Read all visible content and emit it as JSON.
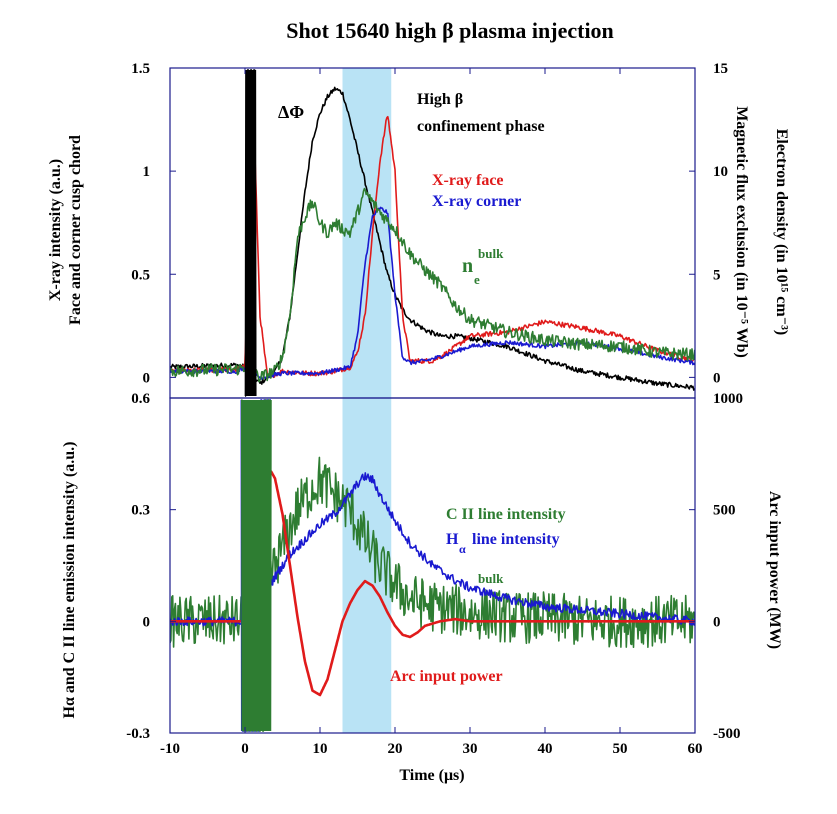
{
  "chart_data": {
    "type": "line",
    "title": "Shot 15640 high β plasma injection",
    "xlabel": "Time (μs)",
    "xlim": [
      -10,
      60
    ],
    "x_ticks": [
      "-10",
      "0",
      "10",
      "20",
      "30",
      "40",
      "50",
      "60"
    ],
    "highlight_band": {
      "x": [
        13,
        19.5
      ],
      "color": "#b9e3f5"
    },
    "colors": {
      "red": "#e01b1b",
      "blue": "#1a1ad0",
      "green": "#2e7d32",
      "black": "#000000",
      "axis": "#1a1a8c"
    },
    "panels": [
      {
        "position": "top",
        "ylabel_left_lines": [
          "X-ray intensity (a.u.)",
          "Face and corner cusp chord"
        ],
        "ylabel_right_lines": [
          "Magnetic flux exclusion (in 10⁻⁵ Wb)",
          "Electron density (in 10¹⁵ cm⁻³)"
        ],
        "ylim_left": [
          -0.1,
          1.5
        ],
        "ylim_right": [
          -1,
          15
        ],
        "left_ticks": [
          "0",
          "0.5",
          "1",
          "1.5"
        ],
        "left_tick_values": [
          0,
          0.5,
          1,
          1.5
        ],
        "right_ticks": [
          "0",
          "5",
          "10",
          "15"
        ],
        "right_tick_values": [
          0,
          5,
          10,
          15
        ],
        "series": [
          {
            "name": "ΔΦ",
            "axis": "right",
            "color": "#000000",
            "noise": 0.12,
            "x": [
              -10,
              -1,
              0,
              2,
              4,
              5,
              6,
              7,
              8,
              9,
              10,
              11,
              12,
              13,
              14,
              15,
              16,
              17,
              18,
              19,
              20,
              21,
              22,
              24,
              26,
              28,
              30,
              35,
              40,
              45,
              50,
              55,
              60
            ],
            "y": [
              0.5,
              0.6,
              0.5,
              -0.3,
              0.3,
              1.0,
              3.0,
              6.0,
              9.0,
              11.5,
              12.8,
              13.6,
              14.0,
              13.8,
              12.5,
              11.0,
              9.5,
              8.0,
              6.5,
              5.0,
              4.0,
              3.3,
              2.8,
              2.3,
              2.0,
              2.0,
              1.9,
              1.5,
              0.8,
              0.3,
              0.0,
              -0.3,
              -0.5
            ]
          },
          {
            "name": "X-ray face",
            "axis": "left",
            "color": "#e01b1b",
            "noise": 0.012,
            "x": [
              -10,
              -1,
              0,
              1,
              2,
              3,
              5,
              8,
              10,
              12,
              14,
              15,
              16,
              17,
              18,
              19,
              20,
              21,
              22,
              25,
              27,
              30,
              35,
              40,
              45,
              50,
              55,
              60
            ],
            "y": [
              0.03,
              0.04,
              0.05,
              1.45,
              0.3,
              0.0,
              0.03,
              0.02,
              0.02,
              0.03,
              0.05,
              0.12,
              0.3,
              0.7,
              1.05,
              1.28,
              1.0,
              0.3,
              0.08,
              0.08,
              0.12,
              0.2,
              0.22,
              0.27,
              0.24,
              0.2,
              0.13,
              0.08
            ]
          },
          {
            "name": "X-ray corner",
            "axis": "left",
            "color": "#1a1ad0",
            "noise": 0.01,
            "x": [
              -10,
              -1,
              0,
              2,
              5,
              10,
              14,
              15,
              16,
              17,
              18,
              19,
              20,
              21,
              22,
              24,
              26,
              30,
              35,
              40,
              45,
              50,
              55,
              60
            ],
            "y": [
              0.03,
              0.03,
              0.05,
              0.0,
              0.02,
              0.02,
              0.05,
              0.2,
              0.55,
              0.78,
              0.82,
              0.8,
              0.4,
              0.1,
              0.07,
              0.08,
              0.1,
              0.15,
              0.17,
              0.15,
              0.17,
              0.14,
              0.1,
              0.07
            ]
          },
          {
            "name": "ne bulk",
            "axis": "right",
            "color": "#2e7d32",
            "noise": 0.3,
            "x": [
              -10,
              -1,
              0,
              2,
              4,
              5,
              6,
              7,
              8,
              9,
              10,
              11,
              12,
              13,
              14,
              15,
              16,
              17,
              18,
              20,
              22,
              24,
              26,
              28,
              30,
              35,
              40,
              45,
              50,
              55,
              60
            ],
            "y": [
              0.3,
              0.4,
              0.5,
              0.0,
              0.3,
              1.0,
              3.0,
              6.8,
              7.8,
              8.5,
              7.5,
              7.0,
              7.5,
              7.2,
              7.0,
              8.0,
              9.0,
              8.5,
              8.0,
              7.2,
              6.0,
              5.2,
              4.5,
              3.5,
              2.8,
              2.2,
              1.8,
              1.6,
              1.5,
              1.2,
              1.1
            ]
          }
        ],
        "burst": {
          "x": [
            0,
            1.5
          ],
          "color": "#000000"
        }
      },
      {
        "position": "bottom",
        "ylabel_left_lines": [
          "Hα and C II line emission intensity (a.u.)"
        ],
        "ylabel_right_lines": [
          "Arc input power (MW)"
        ],
        "ylim_left": [
          -0.3,
          0.6
        ],
        "ylim_right": [
          -500,
          1000
        ],
        "left_ticks": [
          "-0.3",
          "0",
          "0.3",
          "0.6"
        ],
        "left_tick_values": [
          -0.3,
          0,
          0.3,
          0.6
        ],
        "right_ticks": [
          "-500",
          "0",
          "500",
          "1000"
        ],
        "right_tick_values": [
          -500,
          0,
          500,
          1000
        ],
        "series": [
          {
            "name": "C II line intensity",
            "axis": "left",
            "color": "#2e7d32",
            "noise": 0.07,
            "x": [
              -10,
              0,
              1,
              2,
              3,
              4,
              5,
              6,
              7,
              8,
              9,
              10,
              11,
              12,
              13,
              14,
              15,
              16,
              17,
              18,
              20,
              22,
              25,
              28,
              30,
              33,
              35,
              40,
              45,
              50,
              55,
              60
            ],
            "y": [
              0.0,
              0.0,
              0.02,
              0.05,
              0.1,
              0.15,
              0.2,
              0.25,
              0.3,
              0.33,
              0.36,
              0.38,
              0.36,
              0.34,
              0.32,
              0.3,
              0.26,
              0.22,
              0.18,
              0.15,
              0.1,
              0.06,
              0.04,
              0.03,
              0.02,
              0.02,
              0.01,
              0.01,
              0.0,
              0.0,
              0.0,
              0.0
            ]
          },
          {
            "name": "Hα line intensity",
            "axis": "left",
            "color": "#1a1ad0",
            "noise": 0.012,
            "x": [
              -10,
              0,
              2,
              4,
              6,
              8,
              10,
              12,
              14,
              15,
              16,
              17,
              18,
              20,
              22,
              25,
              28,
              30,
              35,
              40,
              45,
              50,
              55,
              60
            ],
            "y": [
              0.0,
              0.0,
              0.05,
              0.12,
              0.18,
              0.22,
              0.26,
              0.29,
              0.34,
              0.37,
              0.39,
              0.38,
              0.34,
              0.27,
              0.21,
              0.15,
              0.11,
              0.09,
              0.06,
              0.04,
              0.03,
              0.02,
              0.01,
              0.0
            ]
          },
          {
            "name": "Arc input power",
            "axis": "right",
            "color": "#e01b1b",
            "noise": 0,
            "x": [
              -10,
              -0.5,
              0,
              1,
              2,
              3,
              3.5,
              4,
              5,
              6,
              7,
              8,
              9,
              10,
              11,
              12,
              13,
              14,
              15,
              16,
              17,
              18,
              19,
              20,
              21,
              22,
              23,
              24,
              26,
              28,
              30,
              40,
              50,
              60
            ],
            "y": [
              0,
              0,
              10,
              120,
              420,
              640,
              670,
              640,
              480,
              250,
              20,
              -180,
              -310,
              -330,
              -260,
              -130,
              0,
              80,
              140,
              180,
              160,
              110,
              40,
              -20,
              -60,
              -70,
              -50,
              -20,
              0,
              10,
              0,
              0,
              0,
              0
            ]
          }
        ],
        "burst": {
          "x": [
            -0.5,
            3.5
          ],
          "colors": [
            "#1a1ad0",
            "#2e7d32"
          ]
        }
      }
    ],
    "annotations": [
      {
        "id": "ann-high-beta",
        "lines": [
          "High β",
          "confinement phase"
        ],
        "color": "#000000"
      },
      {
        "id": "ann-delta-phi",
        "lines": [
          "ΔΦ"
        ],
        "color": "#000000"
      },
      {
        "id": "ann-xray-face",
        "lines": [
          "X-ray face"
        ],
        "color": "#e01b1b"
      },
      {
        "id": "ann-xray-corner",
        "lines": [
          "X-ray corner"
        ],
        "color": "#1a1ad0"
      },
      {
        "id": "ann-ne-bulk",
        "lines": [
          "n",
          "e",
          "bulk"
        ],
        "color": "#2e7d32"
      },
      {
        "id": "ann-cii",
        "lines": [
          "C II line intensity"
        ],
        "color": "#2e7d32"
      },
      {
        "id": "ann-halpha",
        "lines": [
          "H",
          "α",
          "line intensity"
        ],
        "color": "#1a1ad0"
      },
      {
        "id": "ann-n-bulk-bottom",
        "lines": [
          "bulk"
        ],
        "color": "#2e7d32"
      },
      {
        "id": "ann-arc",
        "lines": [
          "Arc input power"
        ],
        "color": "#e01b1b"
      }
    ]
  }
}
